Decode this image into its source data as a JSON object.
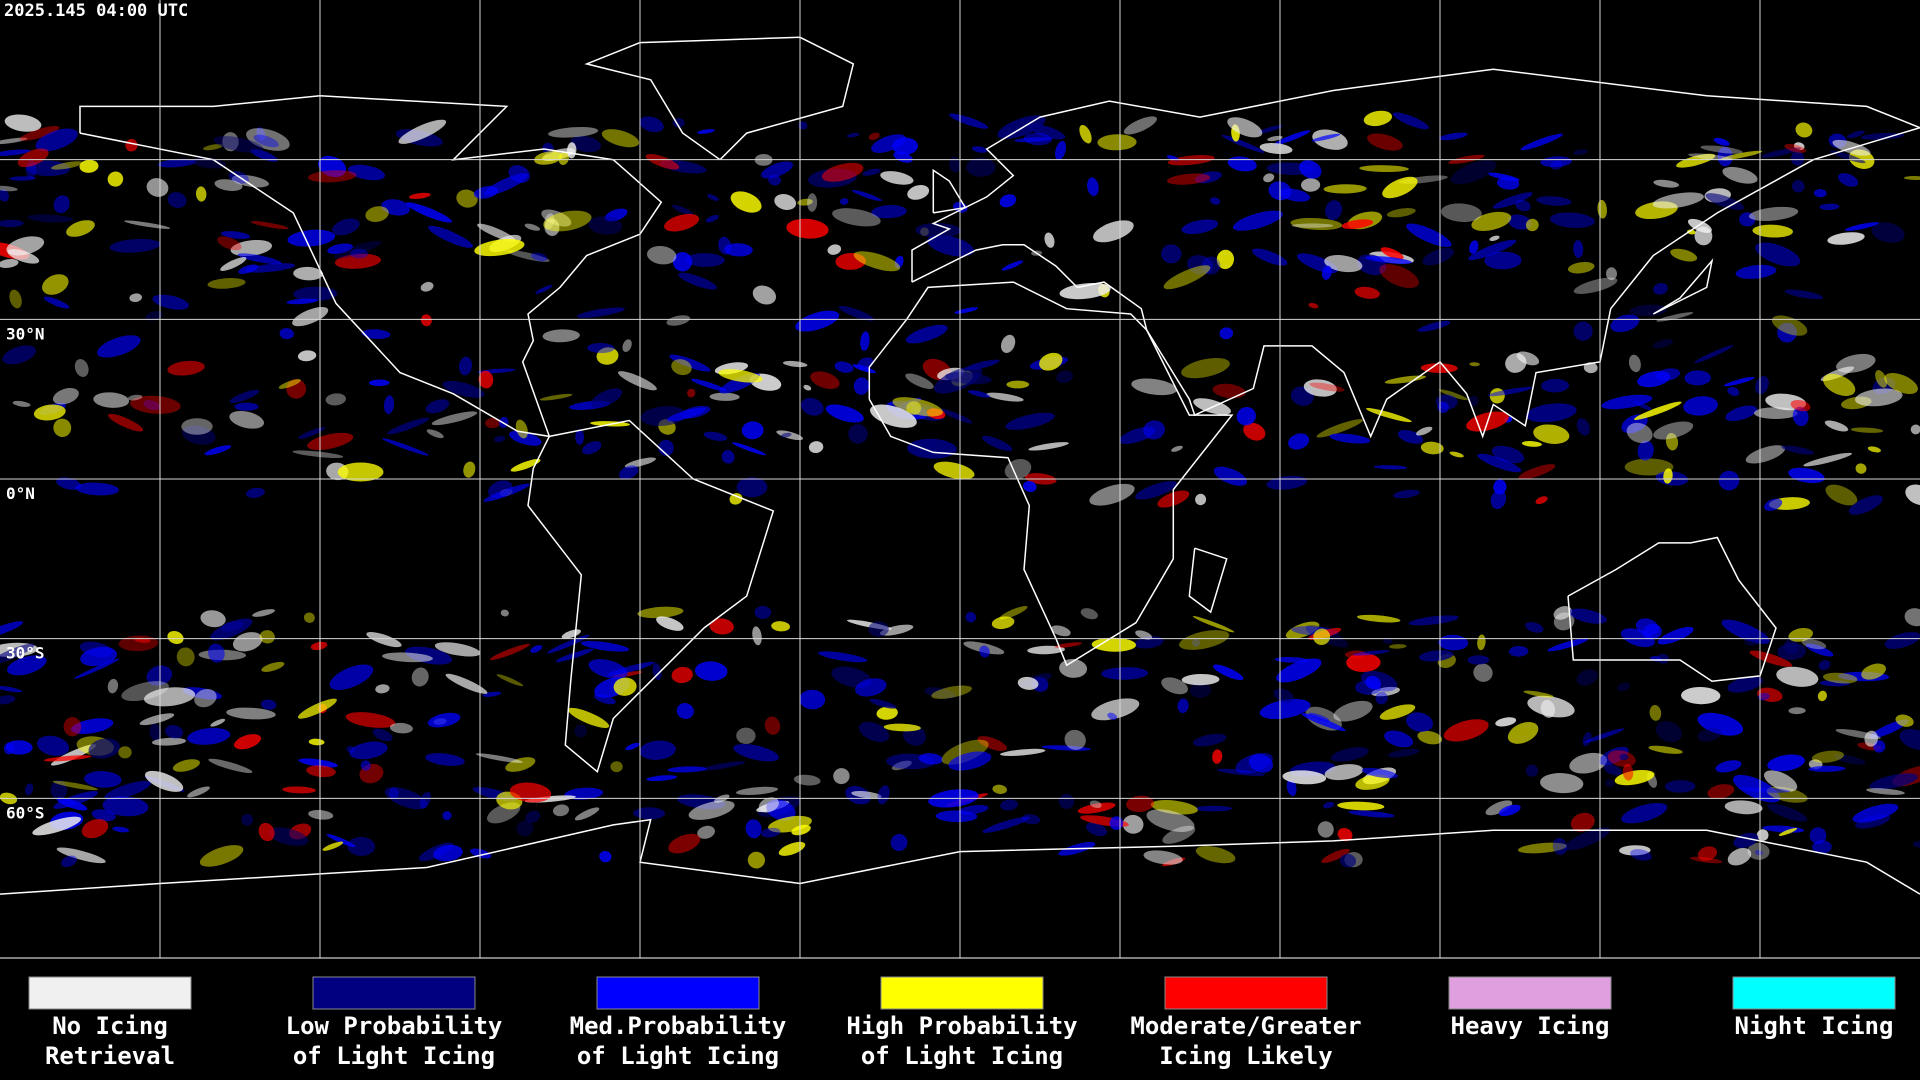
{
  "header": {
    "timestamp": "2025.145 04:00 UTC"
  },
  "map": {
    "latitude_labels": [
      "30°N",
      "0°N",
      "30°S",
      "60°S"
    ]
  },
  "legend": {
    "items": [
      {
        "color": "#f0f0f0",
        "lines": [
          "No Icing",
          "Retrieval"
        ]
      },
      {
        "color": "#000080",
        "lines": [
          "Low Probability",
          "of Light Icing"
        ]
      },
      {
        "color": "#0000ff",
        "lines": [
          "Med.Probability",
          "of Light Icing"
        ]
      },
      {
        "color": "#ffff00",
        "lines": [
          "High Probability",
          "of Light Icing"
        ]
      },
      {
        "color": "#ff0000",
        "lines": [
          "Moderate/Greater",
          "Icing Likely"
        ]
      },
      {
        "color": "#e0a0e0",
        "lines": [
          "Heavy Icing"
        ]
      },
      {
        "color": "#00ffff",
        "lines": [
          "Night Icing"
        ]
      }
    ]
  }
}
